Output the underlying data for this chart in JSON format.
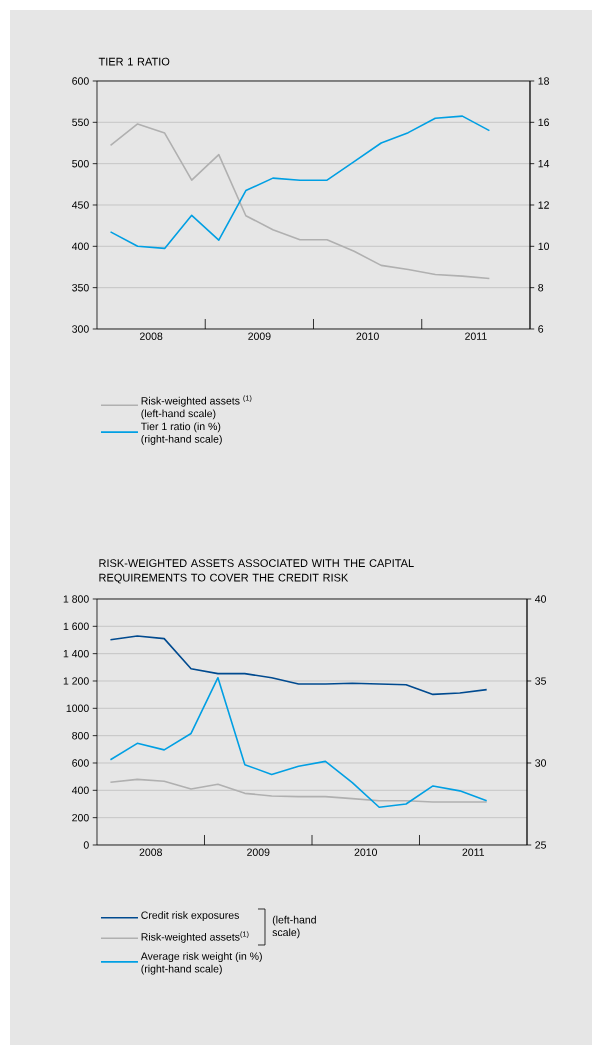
{
  "chart_data": [
    {
      "type": "line",
      "title": "TIER 1 RATIO",
      "x": [
        2008.125,
        2008.375,
        2008.625,
        2008.875,
        2009.125,
        2009.375,
        2009.625,
        2009.875,
        2010.125,
        2010.375,
        2010.625,
        2010.875,
        2011.125,
        2011.375,
        2011.625
      ],
      "series": [
        {
          "name": "Risk-weighted assets $^{(1)}$ (left-hand scale)",
          "color": "#b0b0b0",
          "values": [
            522,
            548,
            537,
            480,
            511,
            437,
            420,
            408,
            408,
            394,
            377,
            372,
            366,
            364,
            361
          ]
        },
        {
          "name": "Tier 1 ratio (in %) (right-hand scale)",
          "color": "#009fe3",
          "axis": "y2",
          "values": [
            10.7,
            10.0,
            9.9,
            11.5,
            10.3,
            12.7,
            13.3,
            13.2,
            13.2,
            14.1,
            15.0,
            15.5,
            16.2,
            16.3,
            15.6
          ]
        }
      ],
      "xlim": [
        2008,
        2012
      ],
      "xticks": [
        {
          "value": 2008.5,
          "label": "2008"
        },
        {
          "value": 2009,
          "label": null
        },
        {
          "value": 2009.5,
          "label": "2009"
        },
        {
          "value": 2010,
          "label": null
        },
        {
          "value": 2010.5,
          "label": "2010"
        },
        {
          "value": 2011,
          "label": null
        },
        {
          "value": 2011.5,
          "label": "2011"
        }
      ],
      "ylim": [
        300,
        600
      ],
      "yticks": [
        300,
        350,
        400,
        450,
        500,
        550,
        600
      ],
      "y2lim": [
        6,
        18
      ],
      "y2ticks": [
        6,
        8,
        10,
        12,
        14,
        16,
        18
      ],
      "grid": "y",
      "legend": "bottom left",
      "marker": "none",
      "line_style": "solid"
    },
    {
      "type": "line",
      "title": "RISK-WEIGHTED ASSETS ASSOCIATED WITH THE CAPITAL REQUIREMENTS TO COVER THE CREDIT RISK",
      "x": [
        2008.125,
        2008.375,
        2008.625,
        2008.875,
        2009.125,
        2009.375,
        2009.625,
        2009.875,
        2010.125,
        2010.375,
        2010.625,
        2010.875,
        2011.125,
        2011.375,
        2011.625
      ],
      "series": [
        {
          "name": "Credit risk exposures",
          "color": "#004a8f",
          "values": [
            1502,
            1529,
            1510,
            1290,
            1254,
            1254,
            1224,
            1178,
            1178,
            1183,
            1178,
            1173,
            1102,
            1112,
            1137
          ]
        },
        {
          "name": "Risk-weighted assets$^{(1)}$",
          "color": "#b0b0b0",
          "values": [
            459,
            480,
            466,
            410,
            444,
            378,
            359,
            354,
            354,
            339,
            324,
            324,
            315,
            315,
            315
          ]
        },
        {
          "name": "Average risk weight (in %) (right-hand scale)",
          "color": "#009fe3",
          "axis": "y2",
          "values": [
            30.2,
            31.2,
            30.8,
            31.8,
            35.2,
            29.9,
            29.3,
            29.8,
            30.1,
            28.8,
            27.3,
            27.5,
            28.6,
            28.3,
            27.7
          ]
        }
      ],
      "xlim": [
        2008,
        2012
      ],
      "xticks": [
        {
          "value": 2008.5,
          "label": "2008"
        },
        {
          "value": 2009,
          "label": null
        },
        {
          "value": 2009.5,
          "label": "2009"
        },
        {
          "value": 2010,
          "label": null
        },
        {
          "value": 2010.5,
          "label": "2010"
        },
        {
          "value": 2011,
          "label": null
        },
        {
          "value": 2011.5,
          "label": "2011"
        }
      ],
      "ylim": [
        0,
        1800
      ],
      "yticks": [
        0,
        200,
        400,
        600,
        800,
        1000,
        {
          "value": 1200,
          "label": "1 200"
        },
        {
          "value": 1400,
          "label": "1 400"
        },
        {
          "value": 1600,
          "label": "1 600"
        },
        {
          "value": 1800,
          "label": "1 800"
        }
      ],
      "y2lim": [
        25,
        40
      ],
      "y2ticks": [
        25,
        30,
        35,
        40
      ],
      "grid": "y",
      "legend": "bottom left",
      "marker": "none",
      "line_style": "solid",
      "annotations": [
        "(left-hand scale)"
      ]
    }
  ]
}
